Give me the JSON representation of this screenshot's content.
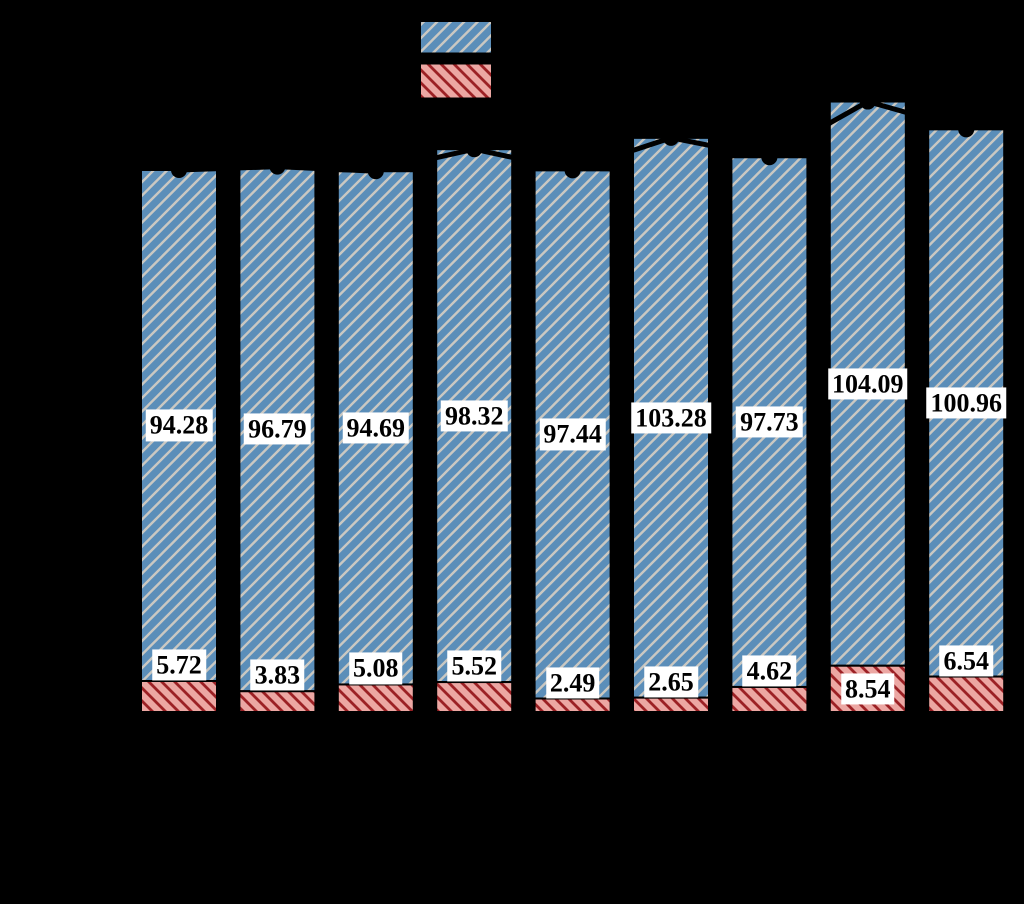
{
  "colors": {
    "background": "#000000",
    "bar_blue_fill": "#5b8eb9",
    "bar_blue_hatch": "#cac8c2",
    "bar_red_fill": "#eca7a3",
    "bar_red_hatch": "#9c2125",
    "bar_edge": "#000000",
    "total_line": "#000000",
    "marker": "#000000",
    "label_bg": "#ffffff",
    "label_text": "#000000"
  },
  "chart_data": {
    "type": "bar",
    "stacked": true,
    "bar_count": 9,
    "axes_visible": false,
    "series": [
      {
        "name": "blue-hatched-upper-segment",
        "hatch": "/",
        "values": [
          94.28,
          96.79,
          94.69,
          98.32,
          97.44,
          103.28,
          97.73,
          104.09,
          100.96
        ]
      },
      {
        "name": "red-hatched-lower-segment",
        "hatch": "\\",
        "values": [
          5.72,
          3.83,
          5.08,
          5.52,
          2.49,
          2.65,
          4.62,
          8.54,
          6.54
        ]
      }
    ],
    "overlay_line": {
      "type": "line",
      "marker": "circle",
      "connects": "tops of stacked bars (sum of both segments)"
    },
    "value_labels": {
      "style": "white box, black bold serif text",
      "blue_position": "center of blue segment",
      "red_position": "just above red segment (inside it when tall enough)"
    },
    "legend": {
      "position": "top-center",
      "entries": [
        {
          "swatch": "blue-hatched"
        },
        {
          "swatch": "red-hatched"
        }
      ]
    }
  }
}
